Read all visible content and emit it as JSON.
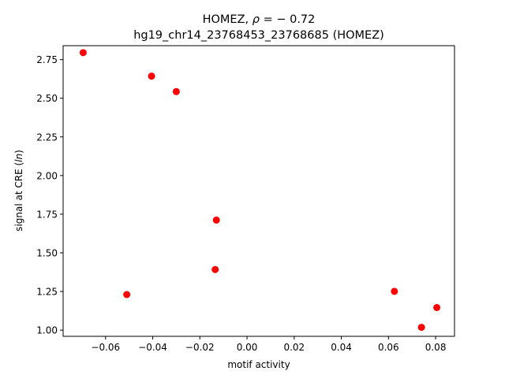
{
  "chart_data": {
    "type": "scatter",
    "title_line1_prefix": "HOMEZ, ",
    "title_line1_rho": "ρ",
    "title_line1_suffix": " = − 0.72",
    "title_line2": "hg19_chr14_23768453_23768685 (HOMEZ)",
    "xlabel": "motif activity",
    "ylabel_prefix": "signal at CRE (",
    "ylabel_italic": "ln",
    "ylabel_suffix": ")",
    "xlim": [
      -0.078,
      0.088
    ],
    "ylim": [
      0.96,
      2.84
    ],
    "x_ticks": [
      -0.06,
      -0.04,
      -0.02,
      0.0,
      0.02,
      0.04,
      0.06,
      0.08
    ],
    "x_tick_labels": [
      "−0.06",
      "−0.04",
      "−0.02",
      "0.00",
      "0.02",
      "0.04",
      "0.06",
      "0.08"
    ],
    "y_ticks": [
      1.0,
      1.25,
      1.5,
      1.75,
      2.0,
      2.25,
      2.5,
      2.75
    ],
    "y_tick_labels": [
      "1.00",
      "1.25",
      "1.50",
      "1.75",
      "2.00",
      "2.25",
      "2.50",
      "2.75"
    ],
    "marker_color": "#ff0000",
    "grid": false,
    "points": [
      {
        "x": -0.0695,
        "y": 2.795
      },
      {
        "x": -0.0405,
        "y": 2.643
      },
      {
        "x": -0.03,
        "y": 2.543
      },
      {
        "x": -0.051,
        "y": 1.23
      },
      {
        "x": -0.013,
        "y": 1.712
      },
      {
        "x": -0.0135,
        "y": 1.392
      },
      {
        "x": 0.0625,
        "y": 1.251
      },
      {
        "x": 0.074,
        "y": 1.018
      },
      {
        "x": 0.0805,
        "y": 1.146
      }
    ]
  }
}
